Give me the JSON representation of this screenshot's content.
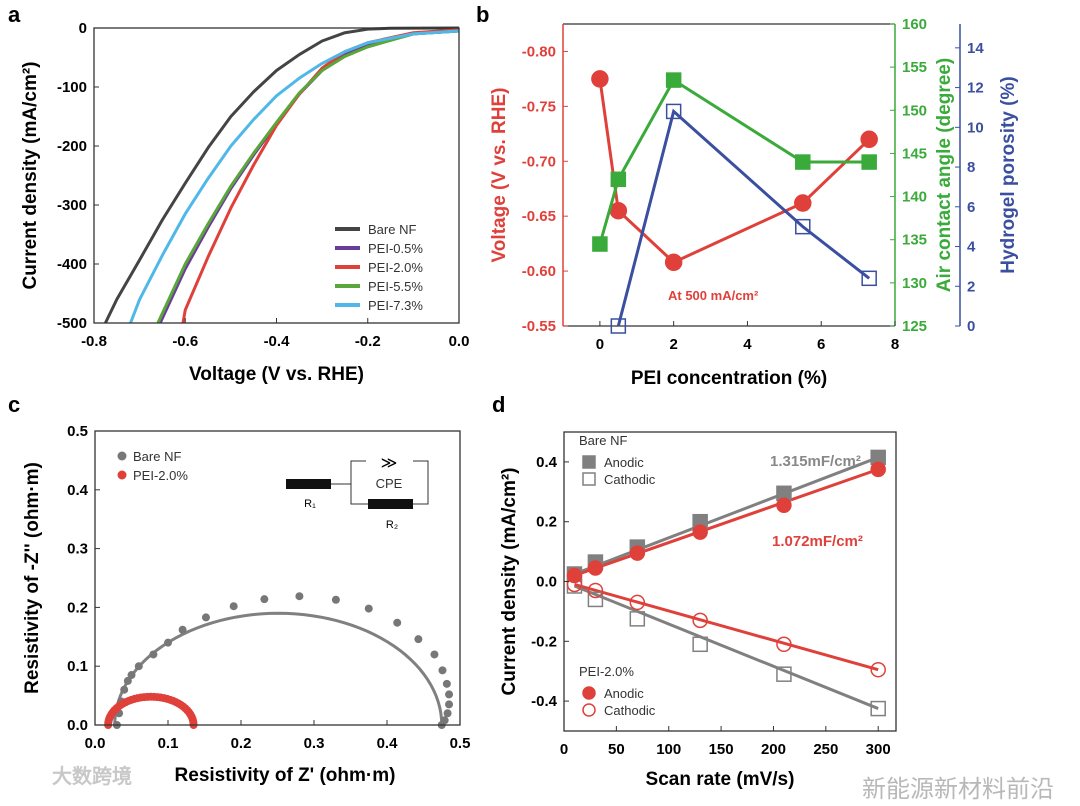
{
  "panels": [
    "a",
    "b",
    "c",
    "d"
  ],
  "watermarks": [
    "大数跨境",
    "新能源新材料前沿"
  ],
  "chart_data": [
    {
      "id": "a",
      "type": "line",
      "xlabel": "Voltage (V vs. RHE)",
      "ylabel": "Current density (mA/cm²)",
      "xlim": [
        -0.8,
        0.0
      ],
      "ylim": [
        -500,
        0
      ],
      "xticks": [
        -0.8,
        -0.6,
        -0.4,
        -0.2,
        0.0
      ],
      "xtick_labels": [
        "-0.8",
        "-0.6",
        "-0.4",
        "-0.2",
        "0.0"
      ],
      "yticks": [
        0,
        -100,
        -200,
        -300,
        -400,
        -500
      ],
      "ytick_labels": [
        "0",
        "-100",
        "-200",
        "-300",
        "-400",
        "-500"
      ],
      "legend_position": "bottom-right",
      "series": [
        {
          "name": "Bare NF",
          "color": "#444444",
          "x": [
            0,
            -0.15,
            -0.2,
            -0.25,
            -0.3,
            -0.35,
            -0.4,
            -0.45,
            -0.5,
            -0.55,
            -0.6,
            -0.65,
            -0.7,
            -0.75,
            -0.775
          ],
          "y": [
            0,
            -0.5,
            -2,
            -8,
            -22,
            -45,
            -72,
            -108,
            -150,
            -203,
            -263,
            -325,
            -393,
            -460,
            -500
          ]
        },
        {
          "name": "PEI-0.5%",
          "color": "#6a3d9a",
          "x": [
            0,
            -0.1,
            -0.2,
            -0.25,
            -0.3,
            -0.35,
            -0.4,
            -0.45,
            -0.5,
            -0.55,
            -0.6,
            -0.655
          ],
          "y": [
            -5,
            -10,
            -30,
            -45,
            -72,
            -112,
            -162,
            -215,
            -272,
            -338,
            -408,
            -500
          ]
        },
        {
          "name": "PEI-2.0%",
          "color": "#e0403a",
          "x": [
            0,
            -0.1,
            -0.2,
            -0.25,
            -0.3,
            -0.35,
            -0.4,
            -0.45,
            -0.5,
            -0.55,
            -0.6,
            -0.605
          ],
          "y": [
            -3,
            -8,
            -25,
            -40,
            -68,
            -112,
            -165,
            -232,
            -305,
            -388,
            -478,
            -500
          ]
        },
        {
          "name": "PEI-5.5%",
          "color": "#5aa63a",
          "x": [
            0,
            -0.1,
            -0.2,
            -0.25,
            -0.3,
            -0.35,
            -0.4,
            -0.45,
            -0.5,
            -0.55,
            -0.6,
            -0.66
          ],
          "y": [
            -5,
            -10,
            -32,
            -48,
            -72,
            -110,
            -160,
            -212,
            -268,
            -332,
            -400,
            -500
          ]
        },
        {
          "name": "PEI-7.3%",
          "color": "#4fb8e8",
          "x": [
            0,
            -0.1,
            -0.2,
            -0.25,
            -0.3,
            -0.35,
            -0.4,
            -0.45,
            -0.5,
            -0.55,
            -0.6,
            -0.65,
            -0.7,
            -0.72
          ],
          "y": [
            -5,
            -10,
            -25,
            -40,
            -60,
            -85,
            -115,
            -155,
            -200,
            -255,
            -315,
            -385,
            -460,
            -500
          ]
        }
      ]
    },
    {
      "id": "b",
      "type": "line",
      "xlabel": "PEI concentration (%)",
      "xlim": [
        -1,
        8
      ],
      "xticks": [
        0,
        2,
        4,
        6,
        8
      ],
      "xtick_labels": [
        "0",
        "2",
        "4",
        "6",
        "8"
      ],
      "annotation": "At 500 mA/cm²",
      "axes": [
        {
          "name": "left",
          "label": "Voltage (V vs. RHE)",
          "color": "#e0403a",
          "ylim": [
            -0.55,
            -0.825
          ],
          "ticks": [
            -0.8,
            -0.75,
            -0.7,
            -0.65,
            -0.6,
            -0.55
          ],
          "tick_labels": [
            "-0.80",
            "-0.75",
            "-0.70",
            "-0.65",
            "-0.60",
            "-0.55"
          ]
        },
        {
          "name": "right1",
          "label": "Air contact angle (degree)",
          "color": "#3aaa3a",
          "ylim": [
            125,
            160
          ],
          "ticks": [
            125,
            130,
            135,
            140,
            145,
            150,
            155,
            160
          ],
          "tick_labels": [
            "125",
            "130",
            "135",
            "140",
            "145",
            "150",
            "155",
            "160"
          ]
        },
        {
          "name": "right2",
          "label": "Hydrogel porosity (%)",
          "color": "#3a4fa0",
          "ylim": [
            0,
            15.2
          ],
          "ticks": [
            0,
            2,
            4,
            6,
            8,
            10,
            12,
            14
          ],
          "tick_labels": [
            "0",
            "2",
            "4",
            "6",
            "8",
            "10",
            "12",
            "14"
          ]
        }
      ],
      "series": [
        {
          "name": "Voltage",
          "axis": 0,
          "marker": "circle",
          "filled": true,
          "color": "#e0403a",
          "x": [
            0,
            0.5,
            2,
            5.5,
            7.3
          ],
          "y": [
            -0.775,
            -0.655,
            -0.608,
            -0.662,
            -0.72
          ]
        },
        {
          "name": "Air contact angle",
          "axis": 1,
          "marker": "square",
          "filled": true,
          "color": "#3aaa3a",
          "x": [
            0,
            0.5,
            2,
            5.5,
            7.3
          ],
          "y": [
            134.5,
            142,
            153.5,
            144,
            144
          ]
        },
        {
          "name": "Hydrogel porosity",
          "axis": 2,
          "marker": "square",
          "filled": false,
          "color": "#3a4fa0",
          "x": [
            0.5,
            2,
            5.5,
            7.3
          ],
          "y": [
            0,
            10.8,
            5,
            2.4
          ]
        }
      ]
    },
    {
      "id": "c",
      "type": "scatter",
      "xlabel": "Resistivity of Z' (ohm·m)",
      "ylabel": "Resistivity of -Z'' (ohm·m)",
      "xlim": [
        0,
        0.5
      ],
      "ylim": [
        0,
        0.5
      ],
      "xticks": [
        0,
        0.1,
        0.2,
        0.3,
        0.4,
        0.5
      ],
      "xtick_labels": [
        "0.0",
        "0.1",
        "0.2",
        "0.3",
        "0.4",
        "0.5"
      ],
      "yticks": [
        0,
        0.1,
        0.2,
        0.3,
        0.4,
        0.5
      ],
      "ytick_labels": [
        "0.0",
        "0.1",
        "0.2",
        "0.3",
        "0.4",
        "0.5"
      ],
      "legend_position": "top-left",
      "circuit": {
        "r1": "R₁",
        "r2": "R₂",
        "cpe": "CPE",
        "cpe_symbol": "≫"
      },
      "series": [
        {
          "name": "Bare NF",
          "color": "#777777",
          "x": [
            0.03,
            0.033,
            0.036,
            0.04,
            0.045,
            0.05,
            0.06,
            0.08,
            0.1,
            0.12,
            0.152,
            0.19,
            0.232,
            0.28,
            0.33,
            0.375,
            0.414,
            0.443,
            0.465,
            0.476,
            0.482,
            0.485,
            0.485,
            0.483,
            0.479,
            0.475
          ],
          "y": [
            0.0,
            0.02,
            0.04,
            0.06,
            0.075,
            0.085,
            0.1,
            0.12,
            0.14,
            0.162,
            0.183,
            0.202,
            0.214,
            0.219,
            0.213,
            0.198,
            0.174,
            0.146,
            0.12,
            0.093,
            0.07,
            0.052,
            0.035,
            0.02,
            0.008,
            0.0
          ],
          "fit": {
            "x0": 0.027,
            "x1": 0.475,
            "peak": 0.19
          }
        },
        {
          "name": "PEI-2.0%",
          "color": "#e0403a",
          "arc": {
            "x0": 0.018,
            "x1": 0.135,
            "peak": 0.048,
            "points": 40
          }
        }
      ]
    },
    {
      "id": "d",
      "type": "scatter",
      "xlabel": "Scan rate (mV/s)",
      "ylabel": "Current density (mA/cm²)",
      "xlim": [
        0,
        317
      ],
      "ylim": [
        -0.5,
        0.5
      ],
      "xticks": [
        0,
        50,
        100,
        150,
        200,
        250,
        300
      ],
      "xtick_labels": [
        "0",
        "50",
        "100",
        "150",
        "200",
        "250",
        "300"
      ],
      "yticks": [
        -0.4,
        -0.2,
        0,
        0.2,
        0.4
      ],
      "ytick_labels": [
        "-0.4",
        "-0.2",
        "0.0",
        "0.2",
        "0.4"
      ],
      "annotations": [
        {
          "text": "1.315mF/cm²",
          "color": "#888888"
        },
        {
          "text": "1.072mF/cm²",
          "color": "#e0403a"
        }
      ],
      "legend_groups": [
        {
          "title": "Bare NF",
          "items": [
            "Anodic",
            "Cathodic"
          ]
        },
        {
          "title": "PEI-2.0%",
          "items": [
            "Anodic",
            "Cathodic"
          ]
        }
      ],
      "x": [
        10,
        30,
        70,
        130,
        210,
        300
      ],
      "series": [
        {
          "name": "Bare NF Anodic",
          "color": "#808080",
          "marker": "square",
          "filled": true,
          "y": [
            0.025,
            0.065,
            0.115,
            0.2,
            0.295,
            0.415
          ]
        },
        {
          "name": "Bare NF Cathodic",
          "color": "#808080",
          "marker": "square",
          "filled": false,
          "y": [
            -0.015,
            -0.06,
            -0.125,
            -0.21,
            -0.31,
            -0.425
          ]
        },
        {
          "name": "PEI-2.0% Anodic",
          "color": "#e0403a",
          "marker": "circle",
          "filled": true,
          "y": [
            0.02,
            0.045,
            0.095,
            0.165,
            0.255,
            0.375
          ]
        },
        {
          "name": "PEI-2.0% Cathodic",
          "color": "#e0403a",
          "marker": "circle",
          "filled": false,
          "y": [
            -0.01,
            -0.03,
            -0.07,
            -0.13,
            -0.21,
            -0.295
          ]
        }
      ]
    }
  ]
}
